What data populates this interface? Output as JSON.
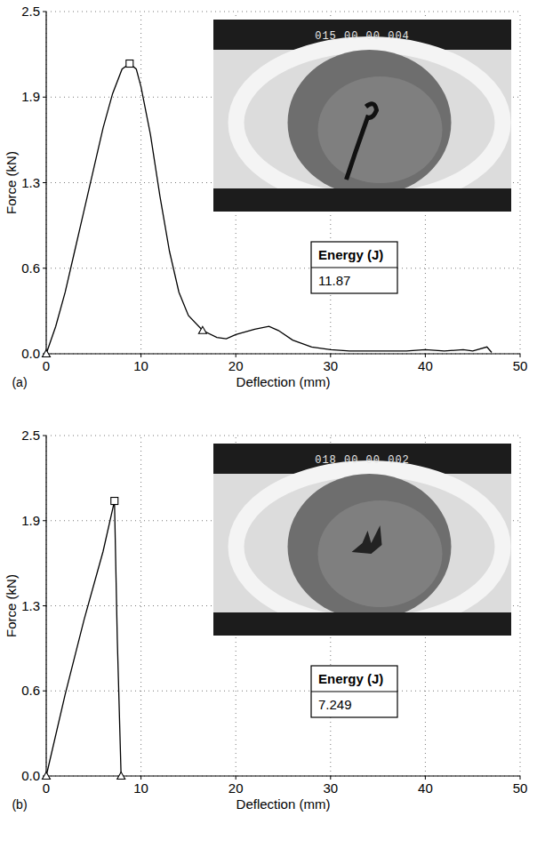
{
  "chart_data": [
    {
      "type": "line",
      "panel_label": "(a)",
      "x_label": "Deflection (mm)",
      "y_label": "Force (kN)",
      "inset_text": "015 00 00 004",
      "annotations": [
        {
          "title": "Energy (J)",
          "value": 11.87
        }
      ],
      "xlim": [
        0,
        50
      ],
      "ylim": [
        0,
        2.5
      ],
      "xticks": [
        0,
        10,
        20,
        30,
        40,
        50
      ],
      "yticks": [
        {
          "value": 0,
          "label": "0.0"
        },
        {
          "value": 0.625,
          "label": "0.6"
        },
        {
          "value": 1.25,
          "label": "1.3"
        },
        {
          "value": 1.875,
          "label": "1.9"
        },
        2.5
      ],
      "grid": true,
      "series": [
        {
          "color": "#000000",
          "line_style": "solid",
          "x": [
            0,
            1,
            2,
            3,
            4,
            5,
            6,
            7,
            8,
            8.8,
            9.5,
            10,
            11,
            12,
            13,
            14,
            15,
            16.5,
            18,
            19,
            20,
            22,
            23.5,
            24.5,
            26,
            28,
            30,
            32,
            35,
            38,
            40,
            42,
            44,
            45,
            46.5,
            47
          ],
          "values": [
            0,
            0.2,
            0.45,
            0.75,
            1.05,
            1.35,
            1.65,
            1.9,
            2.08,
            2.12,
            2.08,
            1.95,
            1.6,
            1.15,
            0.75,
            0.45,
            0.28,
            0.17,
            0.12,
            0.11,
            0.14,
            0.18,
            0.2,
            0.17,
            0.1,
            0.05,
            0.03,
            0.02,
            0.02,
            0.02,
            0.03,
            0.02,
            0.03,
            0.02,
            0.05,
            0.01
          ]
        },
        {
          "type": "scatter",
          "marker": "square",
          "color": "#000000",
          "x": [
            8.8
          ],
          "values": [
            2.12
          ]
        },
        {
          "type": "scatter",
          "marker": "triangle",
          "color": "#000000",
          "x": [
            0,
            16.5
          ],
          "values": [
            0,
            0.17
          ]
        }
      ]
    },
    {
      "type": "line",
      "panel_label": "(b)",
      "x_label": "Deflection (mm)",
      "y_label": "Force (kN)",
      "inset_text": "018 00 00 002",
      "annotations": [
        {
          "title": "Energy (J)",
          "value": 7.249
        }
      ],
      "xlim": [
        0,
        50
      ],
      "ylim": [
        0,
        2.5
      ],
      "xticks": [
        0,
        10,
        20,
        30,
        40,
        50
      ],
      "yticks": [
        {
          "value": 0,
          "label": "0.0"
        },
        {
          "value": 0.625,
          "label": "0.6"
        },
        {
          "value": 1.25,
          "label": "1.3"
        },
        {
          "value": 1.875,
          "label": "1.9"
        },
        2.5
      ],
      "grid": true,
      "series": [
        {
          "color": "#000000",
          "line_style": "solid",
          "x": [
            0,
            2,
            4,
            6,
            7.2,
            7.5,
            7.9
          ],
          "values": [
            0,
            0.6,
            1.15,
            1.65,
            2.02,
            1.0,
            0
          ]
        },
        {
          "type": "scatter",
          "marker": "square",
          "color": "#000000",
          "x": [
            7.2
          ],
          "values": [
            2.02
          ]
        },
        {
          "type": "scatter",
          "marker": "triangle",
          "color": "#000000",
          "x": [
            0,
            7.9
          ],
          "values": [
            0,
            0
          ]
        }
      ]
    }
  ]
}
